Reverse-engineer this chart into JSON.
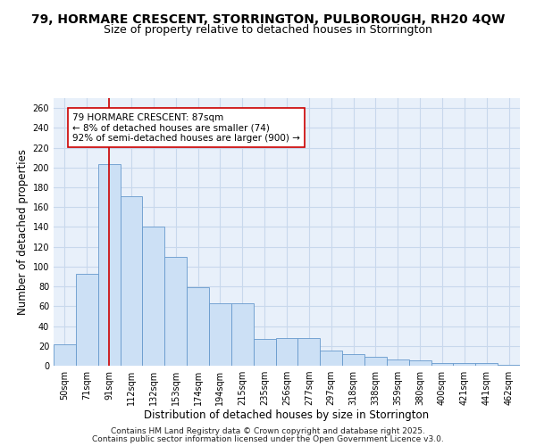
{
  "title_line1": "79, HORMARE CRESCENT, STORRINGTON, PULBOROUGH, RH20 4QW",
  "title_line2": "Size of property relative to detached houses in Storrington",
  "xlabel": "Distribution of detached houses by size in Storrington",
  "ylabel": "Number of detached properties",
  "categories": [
    "50sqm",
    "71sqm",
    "91sqm",
    "112sqm",
    "132sqm",
    "153sqm",
    "174sqm",
    "194sqm",
    "215sqm",
    "235sqm",
    "256sqm",
    "277sqm",
    "297sqm",
    "318sqm",
    "338sqm",
    "359sqm",
    "380sqm",
    "400sqm",
    "421sqm",
    "441sqm",
    "462sqm"
  ],
  "values": [
    22,
    93,
    203,
    171,
    140,
    110,
    79,
    63,
    63,
    27,
    28,
    28,
    15,
    12,
    9,
    6,
    5,
    3,
    3,
    3,
    1
  ],
  "bar_color": "#cce0f5",
  "bar_edge_color": "#6699cc",
  "vline_x": 2,
  "vline_color": "#cc0000",
  "marker_label_line1": "79 HORMARE CRESCENT: 87sqm",
  "marker_label_line2": "← 8% of detached houses are smaller (74)",
  "marker_label_line3": "92% of semi-detached houses are larger (900) →",
  "annotation_box_facecolor": "#ffffff",
  "annotation_box_edgecolor": "#cc0000",
  "ylim": [
    0,
    270
  ],
  "yticks": [
    0,
    20,
    40,
    60,
    80,
    100,
    120,
    140,
    160,
    180,
    200,
    220,
    240,
    260
  ],
  "grid_color": "#c8d8ec",
  "bg_color": "#e8f0fa",
  "footer1": "Contains HM Land Registry data © Crown copyright and database right 2025.",
  "footer2": "Contains public sector information licensed under the Open Government Licence v3.0.",
  "title_fontsize": 10,
  "subtitle_fontsize": 9,
  "axis_label_fontsize": 8.5,
  "tick_fontsize": 7,
  "annotation_fontsize": 7.5,
  "footer_fontsize": 6.5
}
